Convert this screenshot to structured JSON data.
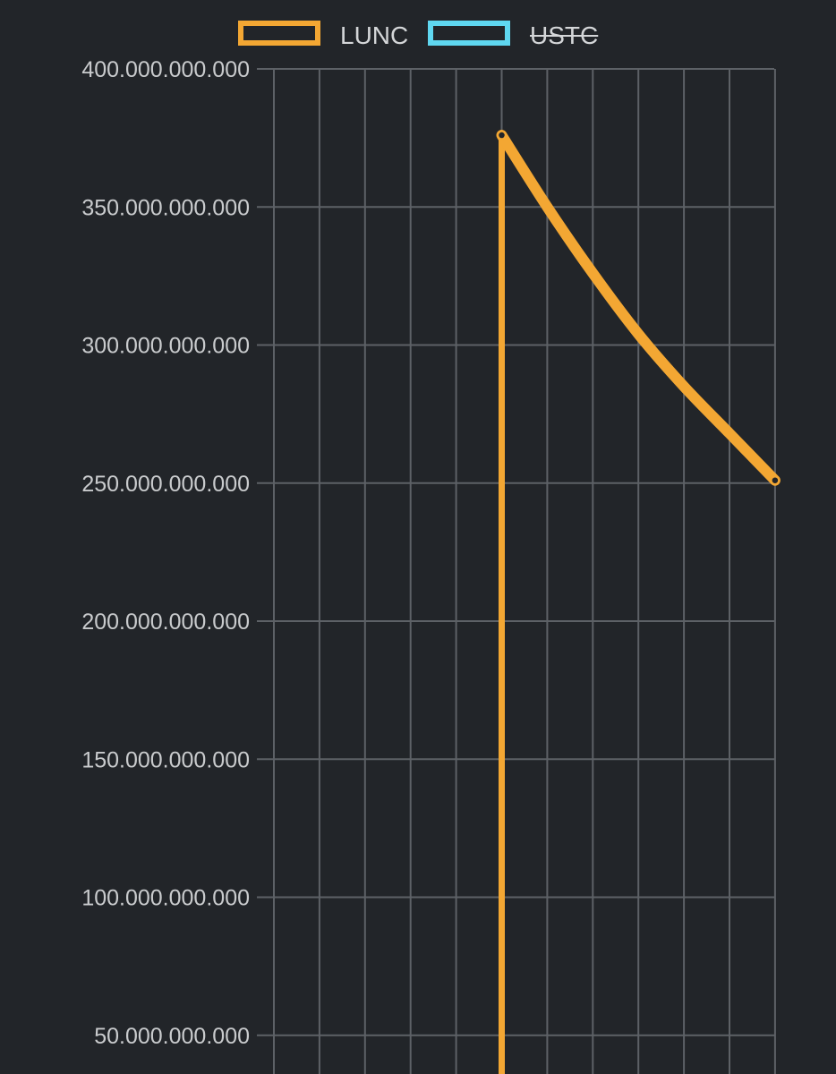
{
  "chart_data": {
    "type": "line",
    "title": "",
    "xlabel": "",
    "ylabel": "",
    "ylim": [
      36000000000,
      400000000000
    ],
    "y_ticks": [
      {
        "value": 400000000000,
        "label": "400.000.000.000"
      },
      {
        "value": 350000000000,
        "label": "350.000.000.000"
      },
      {
        "value": 300000000000,
        "label": "300.000.000.000"
      },
      {
        "value": 250000000000,
        "label": "250.000.000.000"
      },
      {
        "value": 200000000000,
        "label": "200.000.000.000"
      },
      {
        "value": 150000000000,
        "label": "150.000.000.000"
      },
      {
        "value": 100000000000,
        "label": "100.000.000.000"
      },
      {
        "value": 50000000000,
        "label": "50.000.000.000"
      }
    ],
    "x_count": 12,
    "grid": true,
    "legend_position": "top-center",
    "series": [
      {
        "name": "LUNC",
        "color": "#f3a733",
        "visible": true,
        "points": [
          {
            "x": 0,
            "y": null
          },
          {
            "x": 1,
            "y": null
          },
          {
            "x": 2,
            "y": null
          },
          {
            "x": 3,
            "y": null
          },
          {
            "x": 4,
            "y": null
          },
          {
            "x": 5,
            "y": 33000000000
          },
          {
            "x": 5,
            "y": 376000000000
          },
          {
            "x": 6,
            "y": 350000000000
          },
          {
            "x": 7,
            "y": 326000000000
          },
          {
            "x": 8,
            "y": 304000000000
          },
          {
            "x": 9,
            "y": 285000000000
          },
          {
            "x": 10,
            "y": 268000000000
          },
          {
            "x": 11,
            "y": 251000000000
          }
        ]
      },
      {
        "name": "USTC",
        "color": "#5fd7f0",
        "visible": false,
        "points": []
      }
    ]
  }
}
